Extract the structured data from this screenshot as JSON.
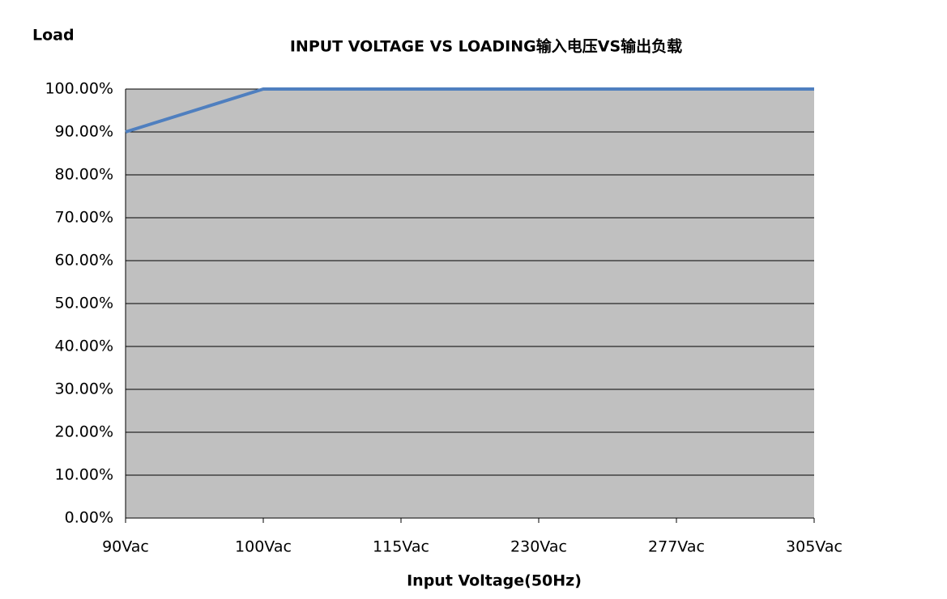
{
  "chart_data": {
    "type": "line",
    "title": "INPUT VOLTAGE VS LOADING输入电压VS输出负载",
    "y_label": "Load",
    "x_label": "Input Voltage(50Hz)",
    "categories": [
      "90Vac",
      "100Vac",
      "115Vac",
      "230Vac",
      "277Vac",
      "305Vac"
    ],
    "values": [
      90,
      100,
      100,
      100,
      100,
      100
    ],
    "color": "#4f7fbf",
    "ylim": [
      0,
      100
    ],
    "yticks": [
      {
        "value": 0,
        "label": "0.00%"
      },
      {
        "value": 10,
        "label": "10.00%"
      },
      {
        "value": 20,
        "label": "20.00%"
      },
      {
        "value": 30,
        "label": "30.00%"
      },
      {
        "value": 40,
        "label": "40.00%"
      },
      {
        "value": 50,
        "label": "50.00%"
      },
      {
        "value": 60,
        "label": "60.00%"
      },
      {
        "value": 70,
        "label": "70.00%"
      },
      {
        "value": 80,
        "label": "80.00%"
      },
      {
        "value": 90,
        "label": "90.00%"
      },
      {
        "value": 100,
        "label": "100.00%"
      }
    ],
    "grid": true
  }
}
